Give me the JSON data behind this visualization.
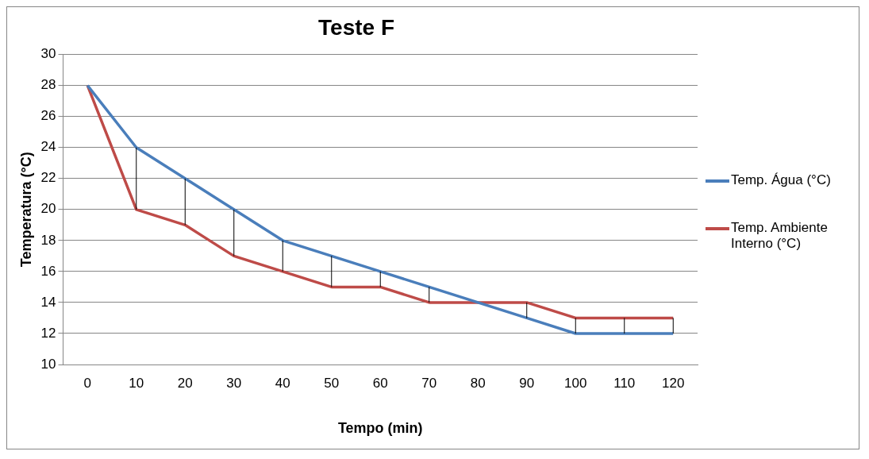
{
  "chart_data": {
    "type": "line",
    "title": "Teste F",
    "xlabel": "Tempo (min)",
    "ylabel": "Temperatura (°C)",
    "categories": [
      "0",
      "10",
      "20",
      "30",
      "40",
      "50",
      "60",
      "70",
      "80",
      "90",
      "100",
      "110",
      "120"
    ],
    "series": [
      {
        "name": "Temp. Água (°C)",
        "color": "#4a7ebb",
        "values": [
          28,
          24,
          22,
          20,
          18,
          17,
          16,
          15,
          14,
          13,
          12,
          12,
          12
        ],
        "errors": [
          null,
          [
            20,
            24
          ],
          [
            19,
            22
          ],
          [
            17,
            20
          ],
          [
            16,
            18
          ],
          [
            15,
            17
          ],
          [
            15,
            16
          ],
          [
            14,
            15
          ],
          null,
          [
            13,
            14
          ],
          [
            12,
            13
          ],
          [
            12,
            13
          ],
          [
            12,
            13
          ]
        ]
      },
      {
        "name": "Temp. Ambiente Interno (°C)",
        "color": "#be4b48",
        "values": [
          28,
          20,
          19,
          17,
          16,
          15,
          15,
          14,
          14,
          14,
          13,
          13,
          13
        ]
      }
    ],
    "ylim": [
      10,
      30
    ],
    "yticks": [
      10,
      12,
      14,
      16,
      18,
      20,
      22,
      24,
      26,
      28,
      30
    ],
    "grid": "y",
    "legend": "right",
    "marker": "none",
    "line_style": "solid"
  }
}
